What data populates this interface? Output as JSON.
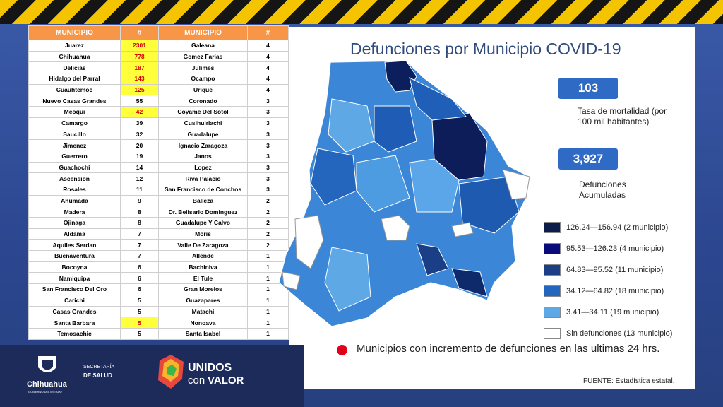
{
  "header": {
    "title": "Defunciones por Municipio COVID-19"
  },
  "table": {
    "columns": [
      "MUNICIPIO",
      "#",
      "MUNICIPIO",
      "#"
    ],
    "highlight_color": "#ffff3c",
    "rows": [
      {
        "cells": [
          "Juarez",
          2301,
          "Galeana",
          4
        ],
        "highlight": true
      },
      {
        "cells": [
          "Chihuahua",
          778,
          "Gomez Farias",
          4
        ],
        "highlight": true
      },
      {
        "cells": [
          "Delicias",
          187,
          "Julimes",
          4
        ],
        "highlight": true
      },
      {
        "cells": [
          "Hidalgo del Parral",
          143,
          "Ocampo",
          4
        ],
        "highlight": true
      },
      {
        "cells": [
          "Cuauhtemoc",
          125,
          "Urique",
          4
        ],
        "highlight": true
      },
      {
        "cells": [
          "Nuevo Casas Grandes",
          55,
          "Coronado",
          3
        ],
        "highlight": false
      },
      {
        "cells": [
          "Meoqui",
          42,
          "Coyame Del Sotol",
          3
        ],
        "highlight": true
      },
      {
        "cells": [
          "Camargo",
          39,
          "Cusihuiriachi",
          3
        ],
        "highlight": false
      },
      {
        "cells": [
          "Saucillo",
          32,
          "Guadalupe",
          3
        ],
        "highlight": false
      },
      {
        "cells": [
          "Jimenez",
          20,
          "Ignacio Zaragoza",
          3
        ],
        "highlight": false
      },
      {
        "cells": [
          "Guerrero",
          19,
          "Janos",
          3
        ],
        "highlight": false
      },
      {
        "cells": [
          "Guachochi",
          14,
          "Lopez",
          3
        ],
        "highlight": false
      },
      {
        "cells": [
          "Ascension",
          12,
          "Riva Palacio",
          3
        ],
        "highlight": false
      },
      {
        "cells": [
          "Rosales",
          11,
          "San Francisco de Conchos",
          3
        ],
        "highlight": false
      },
      {
        "cells": [
          "Ahumada",
          9,
          "Balleza",
          2
        ],
        "highlight": false
      },
      {
        "cells": [
          "Madera",
          8,
          "Dr. Belisario Dominguez",
          2
        ],
        "highlight": false
      },
      {
        "cells": [
          "Ojinaga",
          8,
          "Guadalupe Y Calvo",
          2
        ],
        "highlight": false
      },
      {
        "cells": [
          "Aldama",
          7,
          "Moris",
          2
        ],
        "highlight": false
      },
      {
        "cells": [
          "Aquiles Serdan",
          7,
          "Valle De Zaragoza",
          2
        ],
        "highlight": false
      },
      {
        "cells": [
          "Buenaventura",
          7,
          "Allende",
          1
        ],
        "highlight": false
      },
      {
        "cells": [
          "Bocoyna",
          6,
          "Bachiniva",
          1
        ],
        "highlight": false
      },
      {
        "cells": [
          "Namiquipa",
          6,
          "El Tule",
          1
        ],
        "highlight": false
      },
      {
        "cells": [
          "San Francisco Del Oro",
          6,
          "Gran Morelos",
          1
        ],
        "highlight": false
      },
      {
        "cells": [
          "Carichi",
          5,
          "Guazapares",
          1
        ],
        "highlight": false
      },
      {
        "cells": [
          "Casas Grandes",
          5,
          "Matachi",
          1
        ],
        "highlight": false
      },
      {
        "cells": [
          "Santa Barbara",
          5,
          "Nonoava",
          1
        ],
        "highlight": true
      },
      {
        "cells": [
          "Temosachic",
          5,
          "Santa Isabel",
          1
        ],
        "highlight": false
      }
    ]
  },
  "stats": {
    "rate": "103",
    "rate_label": "Tasa de mortalidad (por 100 mil habitantes)",
    "deaths": "3,927",
    "deaths_label": "Defunciones Acumuladas"
  },
  "legend": [
    {
      "label": "126.24—156.94 (2 municipio)",
      "color": "#0d1d4a"
    },
    {
      "label": "95.53—126.23 (4 municipio)",
      "color": "#0a0a7a"
    },
    {
      "label": "64.83—95.52 (11 municipio)",
      "color": "#1a3f86"
    },
    {
      "label": "34.12—64.82 (18 municipio)",
      "color": "#2266bd"
    },
    {
      "label": "3.41—34.11 (19 municipio)",
      "color": "#5ea8e6"
    },
    {
      "label": "Sin defunciones (13 municipio)",
      "color": "#ffffff"
    }
  ],
  "note": "Municipios  con incremento de defunciones en las ultimas 24 hrs.",
  "source": "FUENTE: Estadística estatal.",
  "footer": {
    "state": "Chihuahua",
    "government": "GOBIERNO DEL ESTADO",
    "secretariat": "SECRETARÍA",
    "health": "DE SALUD",
    "unidos": "UNIDOS",
    "con": "con",
    "valor": "VALOR"
  }
}
